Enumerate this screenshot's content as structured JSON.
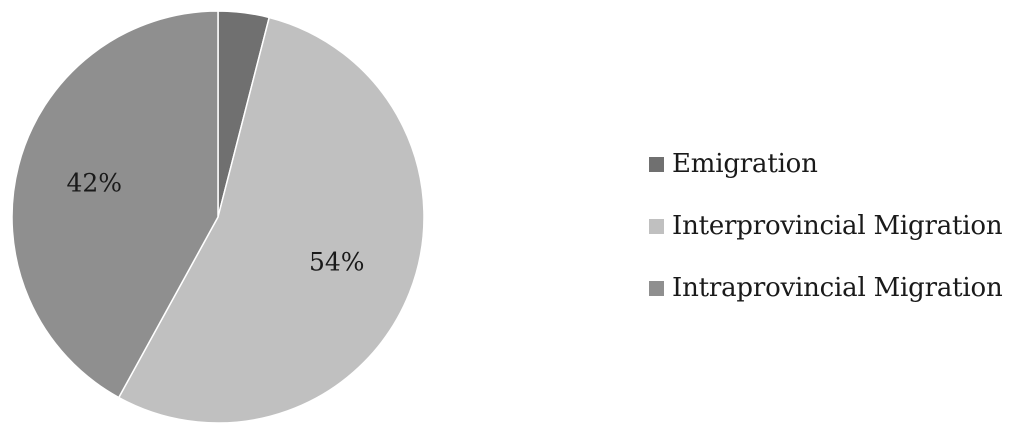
{
  "chart_data": {
    "type": "pie",
    "start_angle": "12 o'clock, clockwise",
    "legend_position": "right",
    "slices": [
      {
        "name": "Emigration",
        "value": 4,
        "label": "",
        "color": "#707070"
      },
      {
        "name": "Interprovincial Migration",
        "value": 54,
        "label": "54%",
        "color": "#c0c0c0"
      },
      {
        "name": "Intraprovincial Migration",
        "value": 42,
        "label": "42%",
        "color": "#8f8f8f"
      }
    ]
  }
}
